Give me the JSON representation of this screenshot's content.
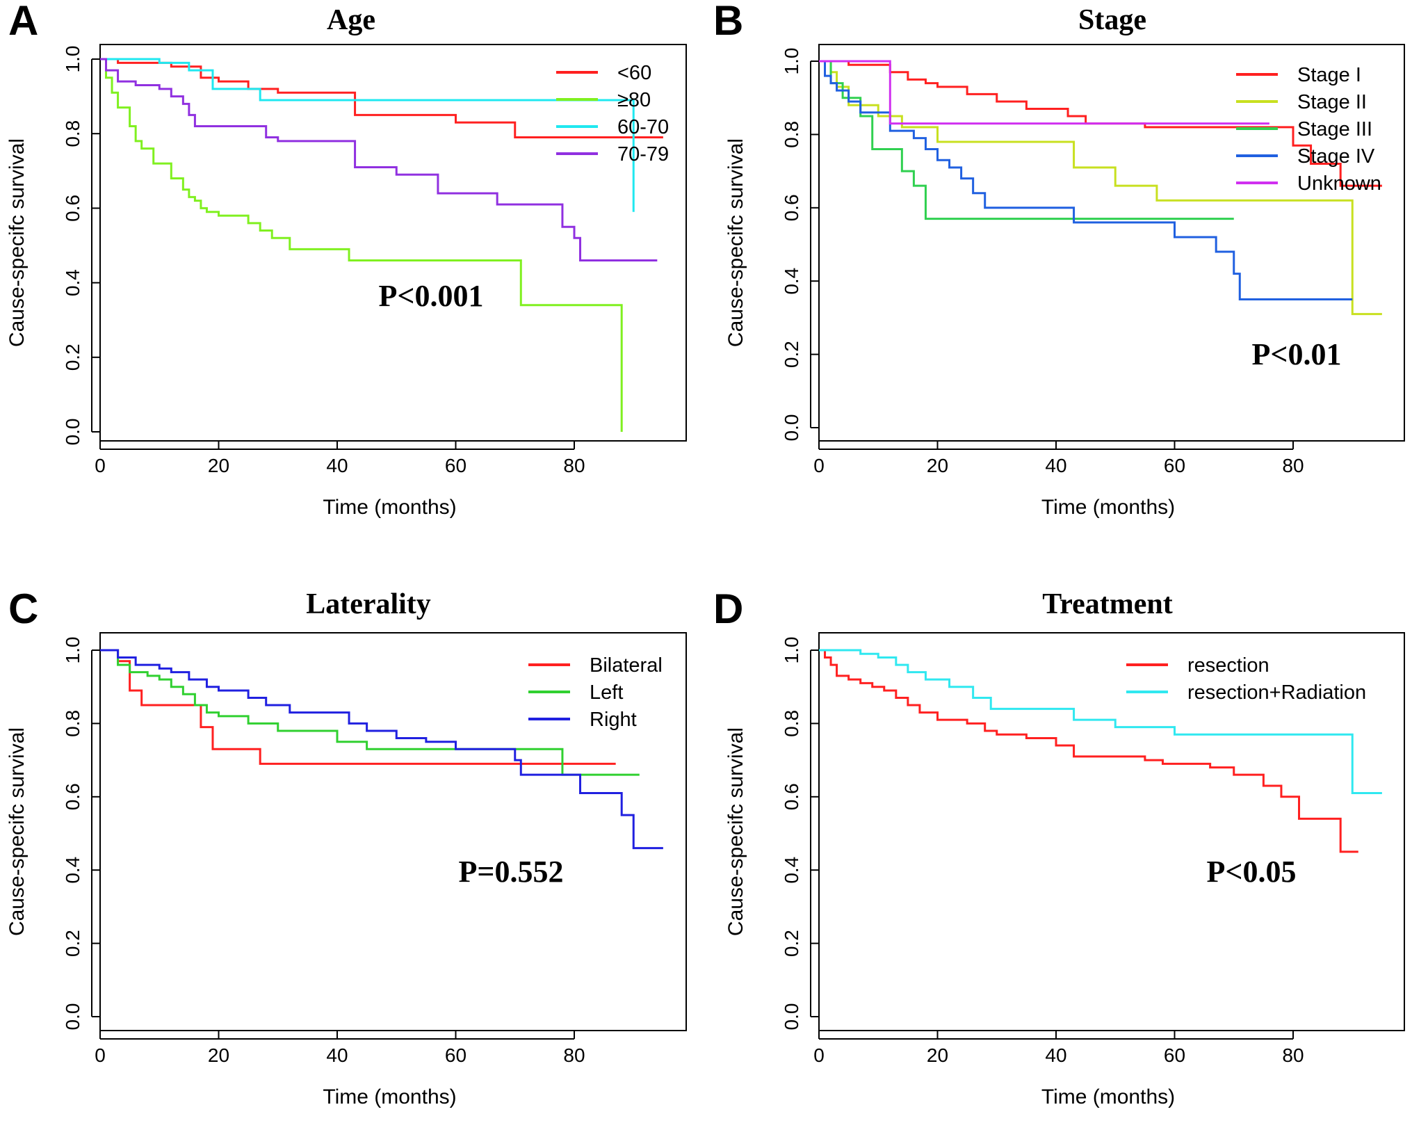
{
  "figure": {
    "panels": [
      {
        "letter": "A"
      },
      {
        "letter": "B"
      },
      {
        "letter": "C"
      },
      {
        "letter": "D"
      }
    ]
  },
  "chart_data": [
    {
      "type": "line",
      "step": true,
      "title": "Age",
      "xlabel": "Time (months)",
      "ylabel": "Cause-specifc survival",
      "xlim": [
        0,
        95
      ],
      "ylim": [
        0,
        1.0
      ],
      "xticks": [
        "0",
        "20",
        "40",
        "60",
        "80"
      ],
      "yticks": [
        "0.0",
        "0.2",
        "0.4",
        "0.6",
        "0.8",
        "1.0"
      ],
      "annotation": "P<0.001",
      "legend_position": "top-right",
      "series": [
        {
          "name": "<60",
          "color": "#ff2020",
          "x": [
            0,
            3,
            12,
            17,
            20,
            25,
            30,
            43,
            60,
            70,
            95
          ],
          "y": [
            1.0,
            0.99,
            0.98,
            0.95,
            0.94,
            0.92,
            0.91,
            0.85,
            0.83,
            0.79,
            0.79
          ]
        },
        {
          "name": "≥80",
          "color": "#80f020",
          "x": [
            0,
            1,
            2,
            3,
            5,
            6,
            7,
            9,
            10,
            12,
            14,
            15,
            16,
            17,
            18,
            20,
            25,
            27,
            29,
            32,
            42,
            71,
            88,
            88
          ],
          "y": [
            1.0,
            0.95,
            0.91,
            0.87,
            0.82,
            0.78,
            0.76,
            0.72,
            0.72,
            0.68,
            0.65,
            0.63,
            0.62,
            0.6,
            0.59,
            0.58,
            0.56,
            0.54,
            0.52,
            0.49,
            0.46,
            0.34,
            0.34,
            0.0
          ]
        },
        {
          "name": "60-70",
          "color": "#20e8f0",
          "x": [
            0,
            10,
            15,
            19,
            27,
            90,
            90
          ],
          "y": [
            1.0,
            0.99,
            0.97,
            0.92,
            0.89,
            0.89,
            0.59
          ]
        },
        {
          "name": "70-79",
          "color": "#9030e0",
          "x": [
            0,
            1,
            3,
            6,
            10,
            12,
            14,
            15,
            16,
            18,
            28,
            30,
            43,
            50,
            57,
            67,
            78,
            80,
            81,
            94
          ],
          "y": [
            1.0,
            0.97,
            0.94,
            0.93,
            0.92,
            0.9,
            0.88,
            0.85,
            0.82,
            0.82,
            0.79,
            0.78,
            0.71,
            0.69,
            0.64,
            0.61,
            0.55,
            0.52,
            0.46,
            0.46
          ]
        }
      ]
    },
    {
      "type": "line",
      "step": true,
      "title": "Stage",
      "xlabel": "Time (months)",
      "ylabel": "Cause-specifc survival",
      "xlim": [
        0,
        95
      ],
      "ylim": [
        0,
        1.0
      ],
      "xticks": [
        "0",
        "20",
        "40",
        "60",
        "80"
      ],
      "yticks": [
        "0.0",
        "0.2",
        "0.4",
        "0.6",
        "0.8",
        "1.0"
      ],
      "annotation": "P<0.01",
      "legend_position": "top-right",
      "series": [
        {
          "name": "Stage I",
          "color": "#ff2020",
          "x": [
            0,
            5,
            12,
            15,
            18,
            20,
            25,
            30,
            35,
            42,
            45,
            55,
            80,
            83,
            88,
            95
          ],
          "y": [
            1.0,
            0.99,
            0.97,
            0.95,
            0.94,
            0.93,
            0.91,
            0.89,
            0.87,
            0.85,
            0.83,
            0.82,
            0.77,
            0.72,
            0.66,
            0.66
          ]
        },
        {
          "name": "Stage II",
          "color": "#c8e020",
          "x": [
            0,
            2,
            3,
            5,
            10,
            14,
            20,
            43,
            50,
            57,
            90,
            90,
            95
          ],
          "y": [
            1.0,
            0.97,
            0.93,
            0.88,
            0.85,
            0.82,
            0.78,
            0.71,
            0.66,
            0.62,
            0.62,
            0.31,
            0.31
          ]
        },
        {
          "name": "Stage III",
          "color": "#30d050",
          "x": [
            0,
            2,
            4,
            7,
            9,
            14,
            16,
            18,
            70
          ],
          "y": [
            1.0,
            0.94,
            0.9,
            0.85,
            0.76,
            0.7,
            0.66,
            0.57,
            0.57
          ]
        },
        {
          "name": "Stage IV",
          "color": "#2060e0",
          "x": [
            0,
            1,
            2,
            3,
            5,
            7,
            12,
            16,
            18,
            20,
            22,
            24,
            26,
            28,
            30,
            43,
            60,
            67,
            70,
            71,
            90
          ],
          "y": [
            1.0,
            0.96,
            0.94,
            0.92,
            0.89,
            0.86,
            0.81,
            0.79,
            0.76,
            0.73,
            0.71,
            0.68,
            0.64,
            0.6,
            0.6,
            0.56,
            0.52,
            0.48,
            0.42,
            0.35,
            0.35
          ]
        },
        {
          "name": "Unknown",
          "color": "#d030f0",
          "x": [
            0,
            12,
            76
          ],
          "y": [
            1.0,
            0.83,
            0.83
          ]
        }
      ]
    },
    {
      "type": "line",
      "step": true,
      "title": "Laterality",
      "xlabel": "Time (months)",
      "ylabel": "Cause-specifc survival",
      "xlim": [
        0,
        95
      ],
      "ylim": [
        0,
        1.0
      ],
      "xticks": [
        "0",
        "20",
        "40",
        "60",
        "80"
      ],
      "yticks": [
        "0.0",
        "0.2",
        "0.4",
        "0.6",
        "0.8",
        "1.0"
      ],
      "annotation": "P=0.552",
      "legend_position": "top-right",
      "series": [
        {
          "name": "Bilateral",
          "color": "#ff2020",
          "x": [
            0,
            3,
            5,
            7,
            15,
            17,
            19,
            27,
            87
          ],
          "y": [
            1.0,
            0.97,
            0.89,
            0.85,
            0.85,
            0.79,
            0.73,
            0.69,
            0.69
          ]
        },
        {
          "name": "Left",
          "color": "#30d030",
          "x": [
            0,
            3,
            5,
            8,
            10,
            12,
            14,
            16,
            18,
            20,
            25,
            30,
            40,
            45,
            78,
            78,
            91
          ],
          "y": [
            1.0,
            0.96,
            0.94,
            0.93,
            0.92,
            0.9,
            0.88,
            0.85,
            0.83,
            0.82,
            0.8,
            0.78,
            0.75,
            0.73,
            0.73,
            0.66,
            0.66
          ]
        },
        {
          "name": "Right",
          "color": "#2020e0",
          "x": [
            0,
            3,
            6,
            10,
            12,
            15,
            18,
            20,
            25,
            28,
            32,
            42,
            45,
            50,
            55,
            60,
            70,
            71,
            80,
            81,
            88,
            90,
            95
          ],
          "y": [
            1.0,
            0.98,
            0.96,
            0.95,
            0.94,
            0.92,
            0.9,
            0.89,
            0.87,
            0.85,
            0.83,
            0.8,
            0.78,
            0.76,
            0.75,
            0.73,
            0.7,
            0.66,
            0.66,
            0.61,
            0.55,
            0.46,
            0.46
          ]
        }
      ]
    },
    {
      "type": "line",
      "step": true,
      "title": "Treatment",
      "xlabel": "Time (months)",
      "ylabel": "Cause-specifc survival",
      "xlim": [
        0,
        95
      ],
      "ylim": [
        0,
        1.0
      ],
      "xticks": [
        "0",
        "20",
        "40",
        "60",
        "80"
      ],
      "yticks": [
        "0.0",
        "0.2",
        "0.4",
        "0.6",
        "0.8",
        "1.0"
      ],
      "annotation": "P<0.05",
      "legend_position": "top-right",
      "series": [
        {
          "name": "resection",
          "color": "#ff2020",
          "x": [
            0,
            1,
            2,
            3,
            5,
            7,
            9,
            11,
            13,
            15,
            17,
            20,
            25,
            28,
            30,
            35,
            40,
            43,
            50,
            55,
            58,
            66,
            70,
            75,
            78,
            81,
            88,
            91
          ],
          "y": [
            1.0,
            0.98,
            0.96,
            0.93,
            0.92,
            0.91,
            0.9,
            0.89,
            0.87,
            0.85,
            0.83,
            0.81,
            0.8,
            0.78,
            0.77,
            0.76,
            0.74,
            0.71,
            0.71,
            0.7,
            0.69,
            0.68,
            0.66,
            0.63,
            0.6,
            0.54,
            0.45,
            0.45
          ]
        },
        {
          "name": "resection+Radiation",
          "color": "#30e8f0",
          "x": [
            0,
            7,
            10,
            13,
            15,
            18,
            22,
            26,
            29,
            43,
            50,
            60,
            90,
            90,
            95
          ],
          "y": [
            1.0,
            0.99,
            0.98,
            0.96,
            0.94,
            0.92,
            0.9,
            0.87,
            0.84,
            0.81,
            0.79,
            0.77,
            0.77,
            0.61,
            0.61
          ]
        }
      ]
    }
  ]
}
